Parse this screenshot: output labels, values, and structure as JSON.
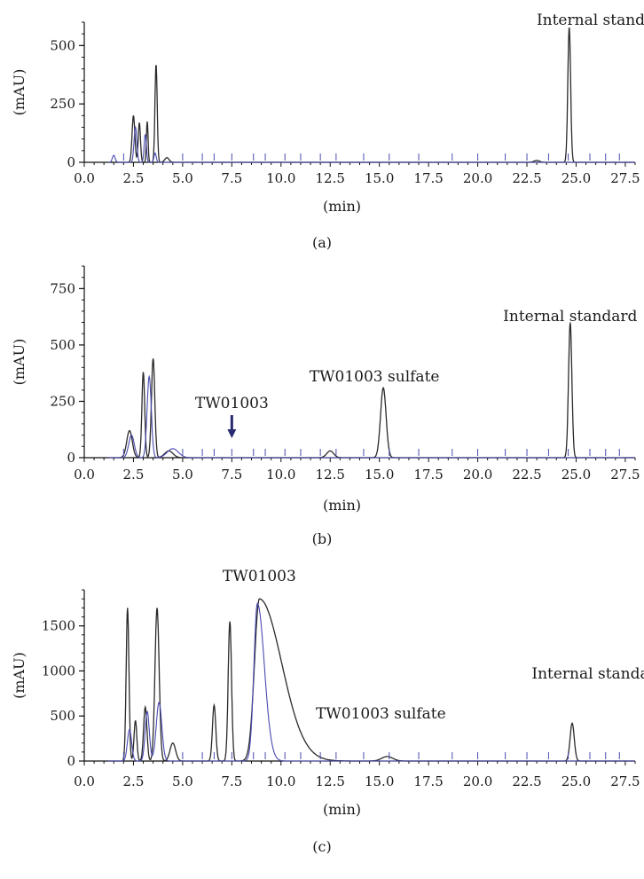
{
  "chart_data": [
    {
      "panel_label": "(a)",
      "type": "line",
      "xlabel": "(min)",
      "ylabel": "(mAU)",
      "xlim": [
        0,
        28
      ],
      "ylim": [
        0,
        600
      ],
      "xticks": [
        "0.0",
        "2.5",
        "5.0",
        "7.5",
        "10.0",
        "12.5",
        "15.0",
        "17.5",
        "20.0",
        "22.5",
        "25.0",
        "27.5"
      ],
      "yticks": [
        "0",
        "250",
        "500"
      ],
      "annotations": [
        {
          "text": "Internal standard",
          "x": 24.6
        }
      ],
      "series": [
        {
          "color": "#2a2a2a",
          "peaks": [
            {
              "x": 2.5,
              "height": 200,
              "width": 0.1
            },
            {
              "x": 2.8,
              "height": 170,
              "width": 0.08
            },
            {
              "x": 3.2,
              "height": 175,
              "width": 0.06
            },
            {
              "x": 3.65,
              "height": 420,
              "width": 0.08
            },
            {
              "x": 4.2,
              "height": 20,
              "width": 0.15
            },
            {
              "x": 23.0,
              "height": 8,
              "width": 0.2
            },
            {
              "x": 24.65,
              "height": 580,
              "width": 0.1
            }
          ]
        },
        {
          "color": "#4a4ab0",
          "peaks": [
            {
              "x": 1.5,
              "height": 30,
              "width": 0.1
            },
            {
              "x": 2.6,
              "height": 150,
              "width": 0.1
            },
            {
              "x": 3.1,
              "height": 120,
              "width": 0.08
            },
            {
              "x": 3.6,
              "height": 40,
              "width": 0.08
            }
          ]
        }
      ]
    },
    {
      "panel_label": "(b)",
      "type": "line",
      "xlabel": "(min)",
      "ylabel": "(mAU)",
      "xlim": [
        0,
        28
      ],
      "ylim": [
        0,
        850
      ],
      "xticks": [
        "0.0",
        "2.5",
        "5.0",
        "7.5",
        "10.0",
        "12.5",
        "15.0",
        "17.5",
        "20.0",
        "22.5",
        "25.0",
        "27.5"
      ],
      "yticks": [
        "0",
        "250",
        "500",
        "750"
      ],
      "annotations": [
        {
          "text": "TW01003",
          "x": 7.5,
          "arrow": true
        },
        {
          "text": "TW01003 sulfate",
          "x": 15.2
        },
        {
          "text": "Internal standard",
          "x": 24.7
        }
      ],
      "series": [
        {
          "color": "#2a2a2a",
          "peaks": [
            {
              "x": 2.3,
              "height": 120,
              "width": 0.2
            },
            {
              "x": 3.0,
              "height": 380,
              "width": 0.1
            },
            {
              "x": 3.5,
              "height": 440,
              "width": 0.12
            },
            {
              "x": 4.3,
              "height": 30,
              "width": 0.3
            },
            {
              "x": 12.5,
              "height": 30,
              "width": 0.25
            },
            {
              "x": 15.2,
              "height": 310,
              "width": 0.2
            },
            {
              "x": 24.7,
              "height": 600,
              "width": 0.12
            }
          ]
        },
        {
          "color": "#4a4ab0",
          "peaks": [
            {
              "x": 2.4,
              "height": 100,
              "width": 0.2
            },
            {
              "x": 3.3,
              "height": 360,
              "width": 0.15
            },
            {
              "x": 4.5,
              "height": 40,
              "width": 0.4
            }
          ]
        }
      ]
    },
    {
      "panel_label": "(c)",
      "type": "line",
      "xlabel": "(min)",
      "ylabel": "(mAU)",
      "xlim": [
        0,
        28
      ],
      "ylim": [
        0,
        1900
      ],
      "xticks": [
        "0.0",
        "2.5",
        "5.0",
        "7.5",
        "10.0",
        "12.5",
        "15.0",
        "17.5",
        "20.0",
        "22.5",
        "25.0",
        "27.5"
      ],
      "yticks": [
        "0",
        "500",
        "1000",
        "1500"
      ],
      "annotations": [
        {
          "text": "TW01003",
          "x": 8.9
        },
        {
          "text": "TW01003 sulfate",
          "x": 15.3
        },
        {
          "text": "Internal standard",
          "x": 24.8
        }
      ],
      "series": [
        {
          "color": "#2a2a2a",
          "peaks": [
            {
              "x": 2.2,
              "height": 1700,
              "width": 0.1
            },
            {
              "x": 2.6,
              "height": 450,
              "width": 0.1
            },
            {
              "x": 3.1,
              "height": 600,
              "width": 0.12
            },
            {
              "x": 3.7,
              "height": 1700,
              "width": 0.15
            },
            {
              "x": 4.5,
              "height": 200,
              "width": 0.2
            },
            {
              "x": 6.6,
              "height": 620,
              "width": 0.12
            },
            {
              "x": 7.4,
              "height": 1550,
              "width": 0.12
            },
            {
              "x": 8.9,
              "height": 1800,
              "width": 0.35,
              "tail": 1.6
            },
            {
              "x": 15.4,
              "height": 50,
              "width": 0.4
            },
            {
              "x": 24.8,
              "height": 420,
              "width": 0.15
            }
          ]
        },
        {
          "color": "#4a4ab0",
          "peaks": [
            {
              "x": 2.3,
              "height": 350,
              "width": 0.15
            },
            {
              "x": 3.2,
              "height": 550,
              "width": 0.15
            },
            {
              "x": 3.8,
              "height": 650,
              "width": 0.2
            },
            {
              "x": 8.8,
              "height": 1750,
              "width": 0.25,
              "tail": 0.5
            }
          ]
        }
      ]
    }
  ]
}
